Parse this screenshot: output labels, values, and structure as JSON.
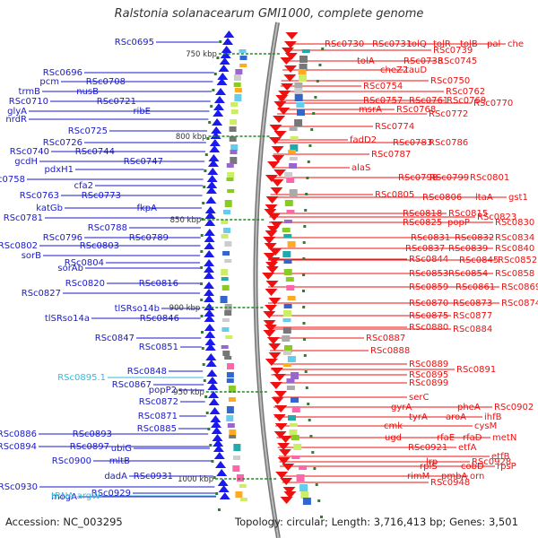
{
  "title": "Ralstonia solanacearum GMI1000, complete genome",
  "footer": {
    "accession": "Accession: NC_003295",
    "summary": "Topology: circular; Length: 3,716,413 bp; Genes: 3,501"
  },
  "colors": {
    "left_labels": "#1a1acc",
    "right_labels": "#ee1111",
    "rna_labels": "#33bbdd",
    "backbone": "#999999",
    "tick_marks": "#228822",
    "reverse_arrows": "#1a1aee",
    "forward_arrows": "#ee1111"
  },
  "scale_ticks": [
    "750 kbp",
    "800 kbp",
    "850 kbp",
    "900 kbp",
    "950 kbp",
    "1000 kbp"
  ],
  "left_labels": [
    "RSc0695",
    "RSc0696",
    "pcm",
    "RSc0708",
    "trmB",
    "nusB",
    "RSc0710",
    "RSc0721",
    "glyA",
    "ribE",
    "nrdR",
    "RSc0725",
    "RSc0726",
    "RSc0740",
    "RSc0744",
    "gcdH",
    "RSc0747",
    "pdxH1",
    "RSc0758",
    "cfa2",
    "RSc0763",
    "RSc0773",
    "katGb",
    "fkpA",
    "RSc0781",
    "RSc0788",
    "RSc0796",
    "RSc0789",
    "RSc0802",
    "RSc0803",
    "sorB",
    "RSc0804",
    "sorAb",
    "RSc0820",
    "RSc0816",
    "RSc0827",
    "tlSRso14b",
    "tlSRso14a",
    "RSc0846",
    "RSc0847",
    "RSc0851",
    "RSc0848",
    "RSc0867",
    "popP2",
    "RSc0872",
    "RSc0871",
    "RSc0885",
    "RSc0886",
    "RSc0893",
    "RSc0894",
    "RSc0897",
    "ubiG",
    "RSc0900",
    "mltB",
    "dadA",
    "RSc0931",
    "RSc0930",
    "RSc0929",
    "mogA",
    "RSc0941",
    "RSc0939",
    "RSc0949",
    "thyA",
    "RSc0955",
    "RSc0952",
    "RSc0969",
    "RSc0968"
  ],
  "rna_labels": [
    "RSc0895.1",
    "tRNA-argW"
  ],
  "right_labels": [
    "RSc0730",
    "RSc0731",
    "tolQ",
    "tolR",
    "tolB",
    "pal",
    "che",
    "RSc0739",
    "tolA",
    "RSc0738",
    "RSc0745",
    "cheZ2",
    "tauD",
    "RSc0750",
    "RSc0754",
    "RSc0762",
    "RSc0757",
    "RSc0761",
    "RSc0769",
    "RSc0770",
    "msrA",
    "RSc0768",
    "RSc0772",
    "RSc0774",
    "fadD2",
    "RSc0783",
    "RSc0786",
    "RSc0787",
    "alaS",
    "RSc0798",
    "RSc0799",
    "RSc0801",
    "RSc0805",
    "RSc0806",
    "ltaA",
    "gst1",
    "RSc0818",
    "RSc0815",
    "RSc0823",
    "RSc0825",
    "popP",
    "RSc0830",
    "RSc0831",
    "RSc0832",
    "RSc0834",
    "RSc0837",
    "RSc0839",
    "RSc0840",
    "RSc0844",
    "RSc0845",
    "RSc0852",
    "RSc0853",
    "RSc0854",
    "RSc0858",
    "RSc0859",
    "RSc0861",
    "RSc0869",
    "RSc0870",
    "RSc0873",
    "RSc0874",
    "RSc0875",
    "RSc0877",
    "RSc0880",
    "RSc0884",
    "RSc0887",
    "RSc0888",
    "RSc0889",
    "RSc0891",
    "RSc0895",
    "RSc0899",
    "serC",
    "gyrA",
    "pheA",
    "RSc0902",
    "tyrA",
    "aroA",
    "ihfB",
    "cmk",
    "cysM",
    "ugd",
    "rfaE",
    "rfaD",
    "metN",
    "RSc0921",
    "etfA",
    "etfB",
    "lrp",
    "RSc0928",
    "rplS",
    "cobD",
    "rpsP",
    "rimM",
    "pmbA",
    "orn",
    "RSc0948"
  ]
}
